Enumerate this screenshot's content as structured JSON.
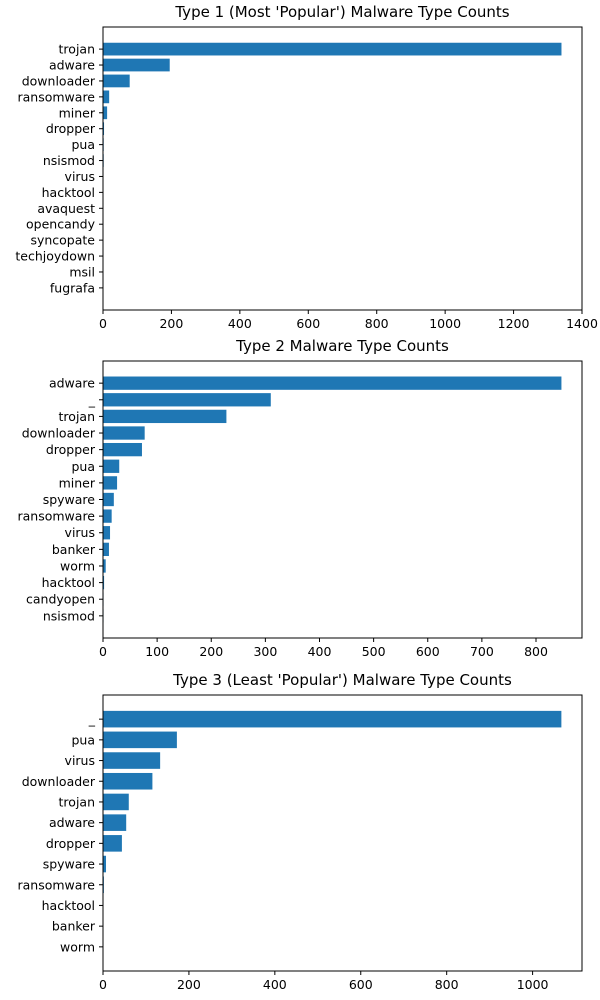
{
  "chart_data": [
    {
      "type": "bar",
      "orientation": "horizontal",
      "title": "Type 1 (Most 'Popular') Malware Type Counts",
      "categories": [
        "trojan",
        "adware",
        "downloader",
        "ransomware",
        "miner",
        "dropper",
        "pua",
        "nsismod",
        "virus",
        "hacktool",
        "avaquest",
        "opencandy",
        "syncopate",
        "techjoydown",
        "msil",
        "fugrafa"
      ],
      "values": [
        1340,
        195,
        78,
        18,
        12,
        3,
        2,
        2,
        1,
        1,
        1,
        1,
        1,
        1,
        1,
        1
      ],
      "xticks": [
        0,
        200,
        400,
        600,
        800,
        1000,
        1200,
        1400
      ],
      "xlim": [
        0,
        1400
      ],
      "color": "#1f77b4",
      "grid": false
    },
    {
      "type": "bar",
      "orientation": "horizontal",
      "title": "Type 2 Malware Type Counts",
      "categories": [
        "adware",
        "_",
        "trojan",
        "downloader",
        "dropper",
        "pua",
        "miner",
        "spyware",
        "ransomware",
        "virus",
        "banker",
        "worm",
        "hacktool",
        "candyopen",
        "nsismod"
      ],
      "values": [
        847,
        310,
        228,
        77,
        72,
        30,
        26,
        20,
        16,
        13,
        11,
        5,
        2,
        1,
        1
      ],
      "xticks": [
        0,
        100,
        200,
        300,
        400,
        500,
        600,
        700,
        800
      ],
      "xlim": [
        0,
        885
      ],
      "color": "#1f77b4",
      "grid": false
    },
    {
      "type": "bar",
      "orientation": "horizontal",
      "title": "Type 3 (Least 'Popular') Malware Type Counts",
      "categories": [
        "_",
        "pua",
        "virus",
        "downloader",
        "trojan",
        "adware",
        "dropper",
        "spyware",
        "ransomware",
        "hacktool",
        "banker",
        "worm"
      ],
      "values": [
        1067,
        172,
        133,
        115,
        60,
        54,
        44,
        7,
        2,
        1,
        1,
        1
      ],
      "xticks": [
        0,
        200,
        400,
        600,
        800,
        1000
      ],
      "xlim": [
        0,
        1115
      ],
      "color": "#1f77b4",
      "grid": false
    }
  ]
}
